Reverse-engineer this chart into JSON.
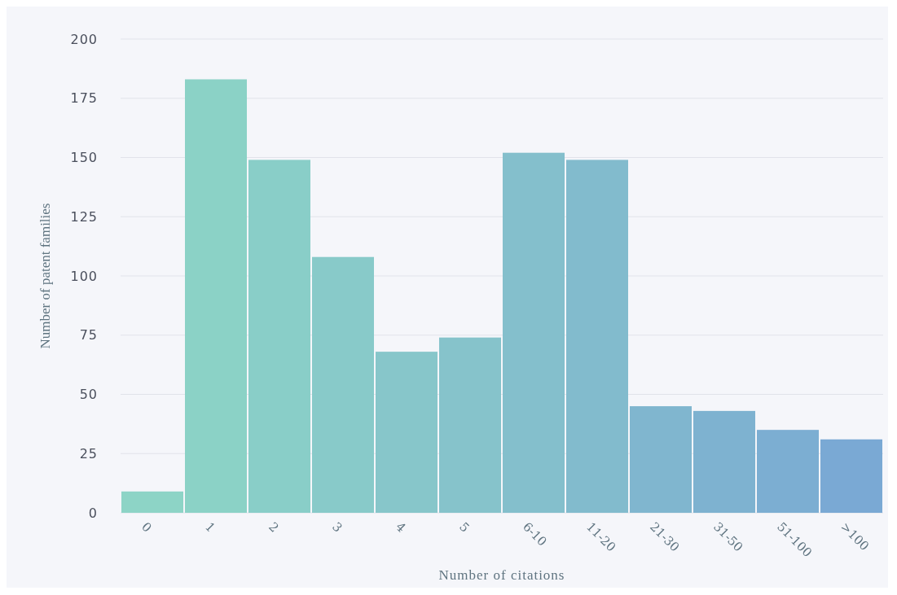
{
  "chart_data": {
    "type": "bar",
    "xlabel": "Number of citations",
    "ylabel": "Number of patent families",
    "categories": [
      "0",
      "1",
      "2",
      "3",
      "4",
      "5",
      "6-10",
      "11-20",
      "21-30",
      "31-50",
      "51-100",
      ">100"
    ],
    "values": [
      9,
      183,
      149,
      108,
      68,
      74,
      152,
      149,
      45,
      43,
      35,
      31
    ],
    "colors": [
      "#8dd4c6",
      "#8bd2c6",
      "#89cec8",
      "#88cac9",
      "#87c6ca",
      "#86c3cb",
      "#84bfcc",
      "#82bbcd",
      "#80b6cf",
      "#7eb2d0",
      "#7caed2",
      "#7aa9d4"
    ],
    "ylim": [
      0,
      200
    ],
    "yticks": [
      0,
      25,
      50,
      75,
      100,
      125,
      150,
      175,
      200
    ],
    "grid": "y"
  }
}
